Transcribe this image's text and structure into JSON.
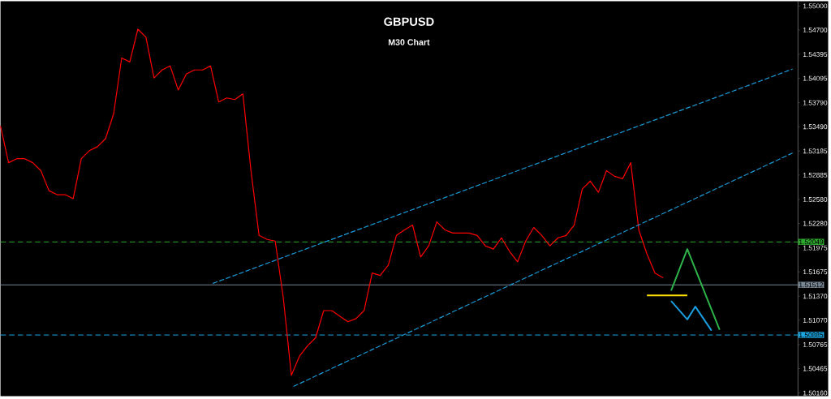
{
  "chart_data": {
    "type": "line",
    "title": "GBPUSD",
    "subtitle": "M30 Chart",
    "categories": [
      null,
      null,
      null,
      null,
      null,
      null,
      null,
      null,
      null,
      null,
      null,
      null,
      null,
      null,
      null,
      null,
      null,
      null,
      null,
      null,
      null,
      null,
      null,
      null,
      null,
      null,
      null,
      null,
      null,
      null,
      null,
      null,
      null,
      null,
      null,
      null,
      null,
      null,
      null,
      null,
      null,
      null,
      null,
      null,
      null,
      null,
      null,
      null,
      null,
      null,
      null,
      null,
      null,
      null,
      null,
      null,
      null,
      null,
      null,
      null,
      null,
      null,
      null,
      null,
      null,
      null,
      null,
      null,
      null,
      null,
      null,
      null,
      null,
      null,
      null,
      null,
      null,
      null,
      null,
      null,
      null,
      null,
      null,
      null,
      null,
      null,
      null,
      null,
      null,
      null,
      null,
      null,
      null,
      null,
      null,
      null,
      null,
      null,
      null
    ],
    "series": [
      {
        "color": "#ff0000",
        "values": [
          1.535,
          1.5304,
          1.5309,
          1.5309,
          1.5304,
          1.5294,
          1.5269,
          1.5264,
          1.5264,
          1.5259,
          1.5309,
          1.5319,
          1.5324,
          1.5334,
          1.5365,
          1.5435,
          1.543,
          1.5471,
          1.5461,
          1.541,
          1.542,
          1.5425,
          1.5395,
          1.5415,
          1.542,
          1.542,
          1.5425,
          1.538,
          1.5385,
          1.5383,
          1.539,
          1.5294,
          1.5213,
          1.5208,
          1.5206,
          1.5135,
          1.5038,
          1.5062,
          1.5075,
          1.5085,
          1.5119,
          1.5119,
          1.5112,
          1.5105,
          1.5109,
          1.5119,
          1.5166,
          1.5163,
          1.5176,
          1.5213,
          1.522,
          1.5226,
          1.5186,
          1.52,
          1.523,
          1.522,
          1.5216,
          1.5216,
          1.5216,
          1.5213,
          1.52,
          1.5196,
          1.521,
          1.5193,
          1.518,
          1.5206,
          1.5223,
          1.5213,
          1.52,
          1.521,
          1.5213,
          1.5226,
          1.5271,
          1.5281,
          1.5267,
          1.5294,
          1.5287,
          1.5284,
          1.5304,
          1.522,
          1.519,
          1.5166,
          1.516,
          null,
          null,
          null,
          null,
          null,
          null,
          null,
          null,
          null,
          null,
          null,
          null,
          null,
          null,
          null,
          null
        ]
      },
      {
        "type": "line",
        "values": [
          null,
          null,
          null,
          null,
          null,
          null,
          null,
          null,
          null,
          null,
          null,
          null,
          null,
          null,
          null,
          null,
          null,
          null,
          null,
          null,
          null,
          null,
          null,
          null,
          null,
          null,
          1.5152,
          null,
          null,
          null,
          null,
          null,
          null,
          null,
          null,
          null,
          null,
          null,
          null,
          null,
          null,
          null,
          null,
          null,
          null,
          null,
          null,
          null,
          null,
          null,
          null,
          null,
          null,
          null,
          null,
          null,
          null,
          null,
          null,
          null,
          null,
          null,
          null,
          null,
          null,
          null,
          null,
          null,
          null,
          null,
          null,
          null,
          null,
          null,
          null,
          null,
          null,
          null,
          null,
          null,
          null,
          null,
          null,
          null,
          null,
          null,
          null,
          null,
          null,
          null,
          null,
          null,
          null,
          null,
          null,
          null,
          null,
          null,
          1.5421
        ],
        "color": "#1a9ad6",
        "line_style": "dashed"
      },
      {
        "type": "line",
        "values": [
          null,
          null,
          null,
          null,
          null,
          null,
          null,
          null,
          null,
          null,
          null,
          null,
          null,
          null,
          null,
          null,
          null,
          null,
          null,
          null,
          null,
          null,
          null,
          null,
          null,
          null,
          null,
          null,
          null,
          null,
          null,
          null,
          null,
          null,
          null,
          null,
          1.5023,
          null,
          null,
          null,
          null,
          null,
          null,
          null,
          null,
          null,
          null,
          null,
          null,
          null,
          null,
          null,
          null,
          null,
          null,
          null,
          null,
          null,
          null,
          null,
          null,
          null,
          null,
          null,
          null,
          null,
          null,
          null,
          null,
          null,
          null,
          null,
          null,
          null,
          null,
          null,
          null,
          null,
          null,
          null,
          null,
          null,
          null,
          null,
          null,
          null,
          null,
          null,
          null,
          null,
          null,
          null,
          null,
          null,
          null,
          null,
          null,
          null,
          1.5316
        ],
        "color": "#1a9ad6",
        "line_style": "dashed"
      },
      {
        "type": "line",
        "values": [
          null,
          null,
          null,
          null,
          null,
          null,
          null,
          null,
          null,
          null,
          null,
          null,
          null,
          null,
          null,
          null,
          null,
          null,
          null,
          null,
          null,
          null,
          null,
          null,
          null,
          null,
          null,
          null,
          null,
          null,
          null,
          null,
          null,
          null,
          null,
          null,
          null,
          null,
          null,
          null,
          null,
          null,
          null,
          null,
          null,
          null,
          null,
          null,
          null,
          null,
          null,
          null,
          null,
          null,
          null,
          null,
          null,
          null,
          null,
          null,
          null,
          null,
          null,
          null,
          null,
          null,
          null,
          null,
          null,
          null,
          null,
          null,
          null,
          null,
          null,
          null,
          null,
          null,
          null,
          null,
          1.5138,
          1.5138,
          1.5138,
          1.5138,
          1.5138,
          1.5138,
          null,
          null,
          null,
          null,
          null,
          null,
          null,
          null,
          null,
          null,
          null,
          null,
          null
        ],
        "color": "#ffe000"
      },
      {
        "type": "line",
        "values": [
          null,
          null,
          null,
          null,
          null,
          null,
          null,
          null,
          null,
          null,
          null,
          null,
          null,
          null,
          null,
          null,
          null,
          null,
          null,
          null,
          null,
          null,
          null,
          null,
          null,
          null,
          null,
          null,
          null,
          null,
          null,
          null,
          null,
          null,
          null,
          null,
          null,
          null,
          null,
          null,
          null,
          null,
          null,
          null,
          null,
          null,
          null,
          null,
          null,
          null,
          null,
          null,
          null,
          null,
          null,
          null,
          null,
          null,
          null,
          null,
          null,
          null,
          null,
          null,
          null,
          null,
          null,
          null,
          null,
          null,
          null,
          null,
          null,
          null,
          null,
          null,
          null,
          null,
          null,
          null,
          null,
          null,
          null,
          1.5144,
          null,
          1.5196,
          null,
          null,
          null,
          1.5095,
          null,
          null,
          null,
          null,
          null,
          null,
          null,
          null,
          null
        ],
        "color": "#2db34a"
      },
      {
        "type": "line",
        "values": [
          null,
          null,
          null,
          null,
          null,
          null,
          null,
          null,
          null,
          null,
          null,
          null,
          null,
          null,
          null,
          null,
          null,
          null,
          null,
          null,
          null,
          null,
          null,
          null,
          null,
          null,
          null,
          null,
          null,
          null,
          null,
          null,
          null,
          null,
          null,
          null,
          null,
          null,
          null,
          null,
          null,
          null,
          null,
          null,
          null,
          null,
          null,
          null,
          null,
          null,
          null,
          null,
          null,
          null,
          null,
          null,
          null,
          null,
          null,
          null,
          null,
          null,
          null,
          null,
          null,
          null,
          null,
          null,
          null,
          null,
          null,
          null,
          null,
          null,
          null,
          null,
          null,
          null,
          null,
          null,
          null,
          null,
          null,
          1.5131,
          null,
          1.5108,
          1.5124,
          null,
          1.5094,
          null,
          null,
          null,
          null,
          null,
          null,
          null,
          null,
          null,
          null
        ],
        "color": "#1a9ee0"
      }
    ],
    "ylim": [
      1.5012,
      1.5506
    ],
    "yticks": [
      {
        "value": 1.55,
        "label": "1.55000"
      },
      {
        "value": 1.547,
        "label": "1.54700"
      },
      {
        "value": 1.54395,
        "label": "1.54395"
      },
      {
        "value": 1.54095,
        "label": "1.54095"
      },
      {
        "value": 1.5379,
        "label": "1.53790"
      },
      {
        "value": 1.5349,
        "label": "1.53490"
      },
      {
        "value": 1.53185,
        "label": "1.53185"
      },
      {
        "value": 1.52885,
        "label": "1.52885"
      },
      {
        "value": 1.5258,
        "label": "1.52580"
      },
      {
        "value": 1.5228,
        "label": "1.52280"
      },
      {
        "value": 1.51975,
        "label": "1.51975"
      },
      {
        "value": 1.51675,
        "label": "1.51675"
      },
      {
        "value": 1.5137,
        "label": "1.51370"
      },
      {
        "value": 1.5107,
        "label": "1.51070"
      },
      {
        "value": 1.50765,
        "label": "1.50765"
      },
      {
        "value": 1.50465,
        "label": "1.50465"
      },
      {
        "value": 1.5016,
        "label": "1.50160"
      }
    ],
    "ref_lines": [
      {
        "axis": "y",
        "value": 1.52049,
        "label": "1.52049",
        "color": "#2ea82e",
        "line_style": "dashed"
      },
      {
        "axis": "y",
        "value": 1.51512,
        "label": "1.51512",
        "color": "#7a8896",
        "line_style": "solid"
      },
      {
        "axis": "y",
        "value": 1.50885,
        "label": "1.50885",
        "color": "#1aa6e0",
        "line_style": "dashed"
      }
    ],
    "tick_labels": "y",
    "grid": false
  }
}
